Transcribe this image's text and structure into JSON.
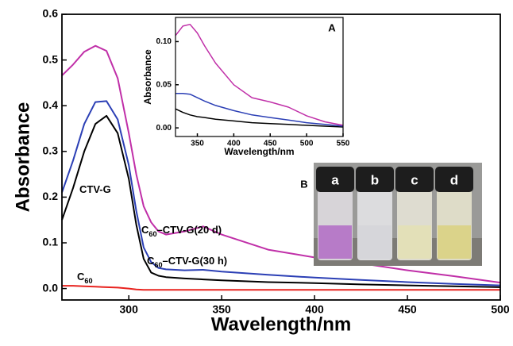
{
  "chart_data": [
    {
      "type": "line",
      "x_label": "Wavelength/nm",
      "y_label": "Absorbance",
      "x": [
        264,
        270,
        276,
        282,
        288,
        294,
        300,
        304,
        308,
        312,
        316,
        320,
        330,
        340,
        350,
        375,
        400,
        425,
        450,
        475,
        500
      ],
      "series": [
        {
          "name": [
            "CTV-G"
          ],
          "color": "#000000",
          "values": [
            0.15,
            0.22,
            0.3,
            0.36,
            0.378,
            0.34,
            0.24,
            0.14,
            0.065,
            0.035,
            0.028,
            0.025,
            0.022,
            0.02,
            0.018,
            0.014,
            0.012,
            0.009,
            0.007,
            0.005,
            0.003
          ]
        },
        {
          "name": [
            "C",
            "60",
            "–CTV-G(30 h)"
          ],
          "color": "#2b3fb5",
          "values": [
            0.21,
            0.28,
            0.36,
            0.408,
            0.41,
            0.37,
            0.27,
            0.17,
            0.09,
            0.058,
            0.045,
            0.042,
            0.04,
            0.041,
            0.037,
            0.03,
            0.024,
            0.019,
            0.014,
            0.01,
            0.007
          ]
        },
        {
          "name": [
            "C",
            "60",
            "–CTV-G(20 d)"
          ],
          "color": "#c02fa8",
          "values": [
            0.466,
            0.49,
            0.518,
            0.531,
            0.52,
            0.46,
            0.34,
            0.25,
            0.18,
            0.145,
            0.125,
            0.118,
            0.125,
            0.136,
            0.118,
            0.085,
            0.068,
            0.055,
            0.04,
            0.027,
            0.013
          ]
        },
        {
          "name": [
            "C",
            "60"
          ],
          "color": "#e8231f",
          "values": [
            0.006,
            0.006,
            0.005,
            0.004,
            0.003,
            0.002,
            0,
            -0.002,
            -0.003,
            -0.003,
            -0.003,
            -0.003,
            -0.003,
            -0.003,
            -0.003,
            -0.003,
            -0.003,
            -0.003,
            -0.003,
            -0.003,
            -0.003
          ]
        }
      ],
      "xlim": [
        264,
        500
      ],
      "xticks": [
        300,
        350,
        400,
        450,
        500
      ],
      "ylim": [
        -0.025,
        0.6
      ],
      "yticks": [
        {
          "value": 0,
          "label": "0.0"
        },
        0.1,
        0.2,
        0.3,
        0.4,
        0.5,
        0.6
      ]
    },
    {
      "type": "line",
      "x_label": "Wavelength/nm",
      "y_label": "Absorbance",
      "panel_label": "A",
      "x": [
        320,
        330,
        340,
        350,
        360,
        375,
        400,
        425,
        450,
        475,
        500,
        525,
        550
      ],
      "series": [
        {
          "color": "#000000",
          "values": [
            0.022,
            0.018,
            0.015,
            0.013,
            0.012,
            0.01,
            0.008,
            0.006,
            0.005,
            0.004,
            0.003,
            0.002,
            0.001
          ]
        },
        {
          "color": "#2b3fb5",
          "values": [
            0.04,
            0.04,
            0.039,
            0.035,
            0.031,
            0.026,
            0.02,
            0.015,
            0.012,
            0.009,
            0.006,
            0.004,
            0.002
          ]
        },
        {
          "color": "#c02fa8",
          "values": [
            0.107,
            0.118,
            0.12,
            0.11,
            0.095,
            0.075,
            0.05,
            0.035,
            0.03,
            0.024,
            0.014,
            0.007,
            0.003
          ]
        }
      ],
      "xlim": [
        320,
        550
      ],
      "xticks": [
        350,
        400,
        450,
        500,
        550
      ],
      "ylim": [
        -0.01,
        0.128
      ],
      "yticks": [
        {
          "value": 0,
          "label": "0.00"
        },
        {
          "value": 0.05,
          "label": "0.05"
        },
        {
          "value": 0.1,
          "label": "0.10"
        }
      ]
    }
  ],
  "photo": {
    "label": "B",
    "vials": [
      "a",
      "b",
      "c",
      "d"
    ]
  }
}
